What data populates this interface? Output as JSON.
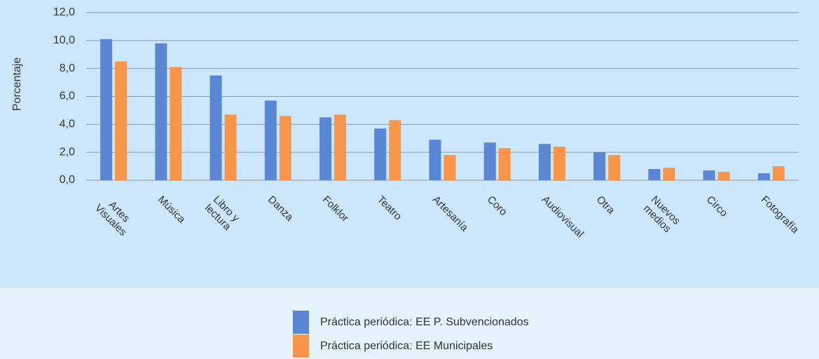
{
  "chart_data": {
    "type": "bar",
    "y_label": "Porcentaje",
    "categories": [
      "Artes\nVisuales",
      "Música",
      "Libro y\nlectura",
      "Danza",
      "Folklor",
      "Teatro",
      "Artesanía",
      "Coro",
      "Audiovisual",
      "Otra",
      "Nuevos\nmedios",
      "Circo",
      "Fotografía"
    ],
    "series": [
      {
        "name": "Práctica periódica: EE P. Subvencionados",
        "color": "#5a87d4",
        "values": [
          10.1,
          9.8,
          7.5,
          5.7,
          4.5,
          3.7,
          2.9,
          2.7,
          2.6,
          2.0,
          0.8,
          0.7,
          0.5
        ]
      },
      {
        "name": "Práctica periódica: EE Municipales",
        "color": "#f7964a",
        "values": [
          8.5,
          8.1,
          4.7,
          4.6,
          4.7,
          4.3,
          1.8,
          2.3,
          2.4,
          1.8,
          0.9,
          0.6,
          1.0
        ]
      }
    ],
    "ylim": [
      0,
      12
    ],
    "yticks": [
      {
        "value": 0,
        "label": "0,0"
      },
      {
        "value": 2,
        "label": "2,0"
      },
      {
        "value": 4,
        "label": "4,0"
      },
      {
        "value": 6,
        "label": "6,0"
      },
      {
        "value": 8,
        "label": "8,0"
      },
      {
        "value": 10,
        "label": "10,0"
      },
      {
        "value": 12,
        "label": "12,0"
      }
    ],
    "grid": true
  }
}
